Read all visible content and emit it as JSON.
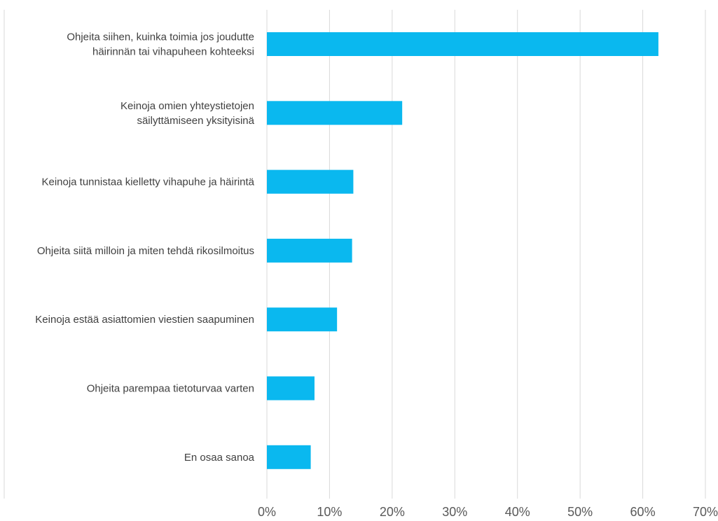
{
  "chart_data": {
    "type": "bar",
    "orientation": "horizontal",
    "categories": [
      [
        "Ohjeita siihen, kuinka toimia jos joudutte",
        "häirinnän tai vihapuheen kohteeksi"
      ],
      [
        "Keinoja omien yhteystietojen",
        "säilyttämiseen yksityisinä"
      ],
      [
        "Keinoja tunnistaa kielletty vihapuhe ja häirintä"
      ],
      [
        "Ohjeita siitä milloin ja miten tehdä rikosilmoitus"
      ],
      [
        "Keinoja estää asiattomien viestien saapuminen"
      ],
      [
        "Ohjeita parempaa tietoturvaa varten"
      ],
      [
        "En osaa sanoa"
      ]
    ],
    "values": [
      62.5,
      21.6,
      13.8,
      13.6,
      11.2,
      7.6,
      7.0
    ],
    "xlim": [
      0,
      70
    ],
    "x_ticks": [
      "0%",
      "10%",
      "20%",
      "30%",
      "40%",
      "50%",
      "60%",
      "70%"
    ],
    "grid": true,
    "colors": {
      "bar": "#0ab8ef"
    }
  }
}
